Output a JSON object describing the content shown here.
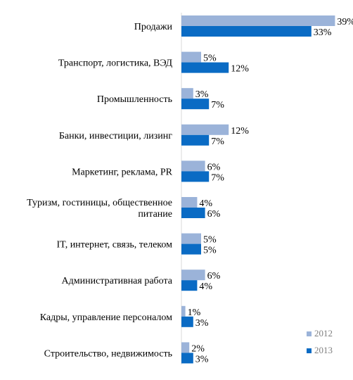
{
  "chart_data": {
    "type": "bar",
    "orientation": "horizontal",
    "title": "",
    "xlabel": "",
    "ylabel": "",
    "categories": [
      [
        "Продажи"
      ],
      [
        "Транспорт, логистика, ВЭД"
      ],
      [
        "Промышленность"
      ],
      [
        "Банки, инвестиции, лизинг"
      ],
      [
        "Маркетинг, реклама, PR"
      ],
      [
        "Туризм, гостиницы, общественное",
        "питание"
      ],
      [
        "IT, интернет, связь, телеком"
      ],
      [
        "Административная работа"
      ],
      [
        "Кадры, управление персоналом"
      ],
      [
        "Строительство, недвижимость"
      ]
    ],
    "series": [
      {
        "name": "2012",
        "color": "#9bb3d9",
        "values": [
          39,
          5,
          3,
          12,
          6,
          4,
          5,
          6,
          1,
          2
        ]
      },
      {
        "name": "2013",
        "color": "#0a6bc4",
        "values": [
          33,
          12,
          7,
          7,
          7,
          6,
          5,
          4,
          3,
          3
        ]
      }
    ],
    "value_suffix": "%",
    "xlim": [
      0,
      39
    ],
    "grid": false,
    "legend_position": "bottom-right"
  }
}
